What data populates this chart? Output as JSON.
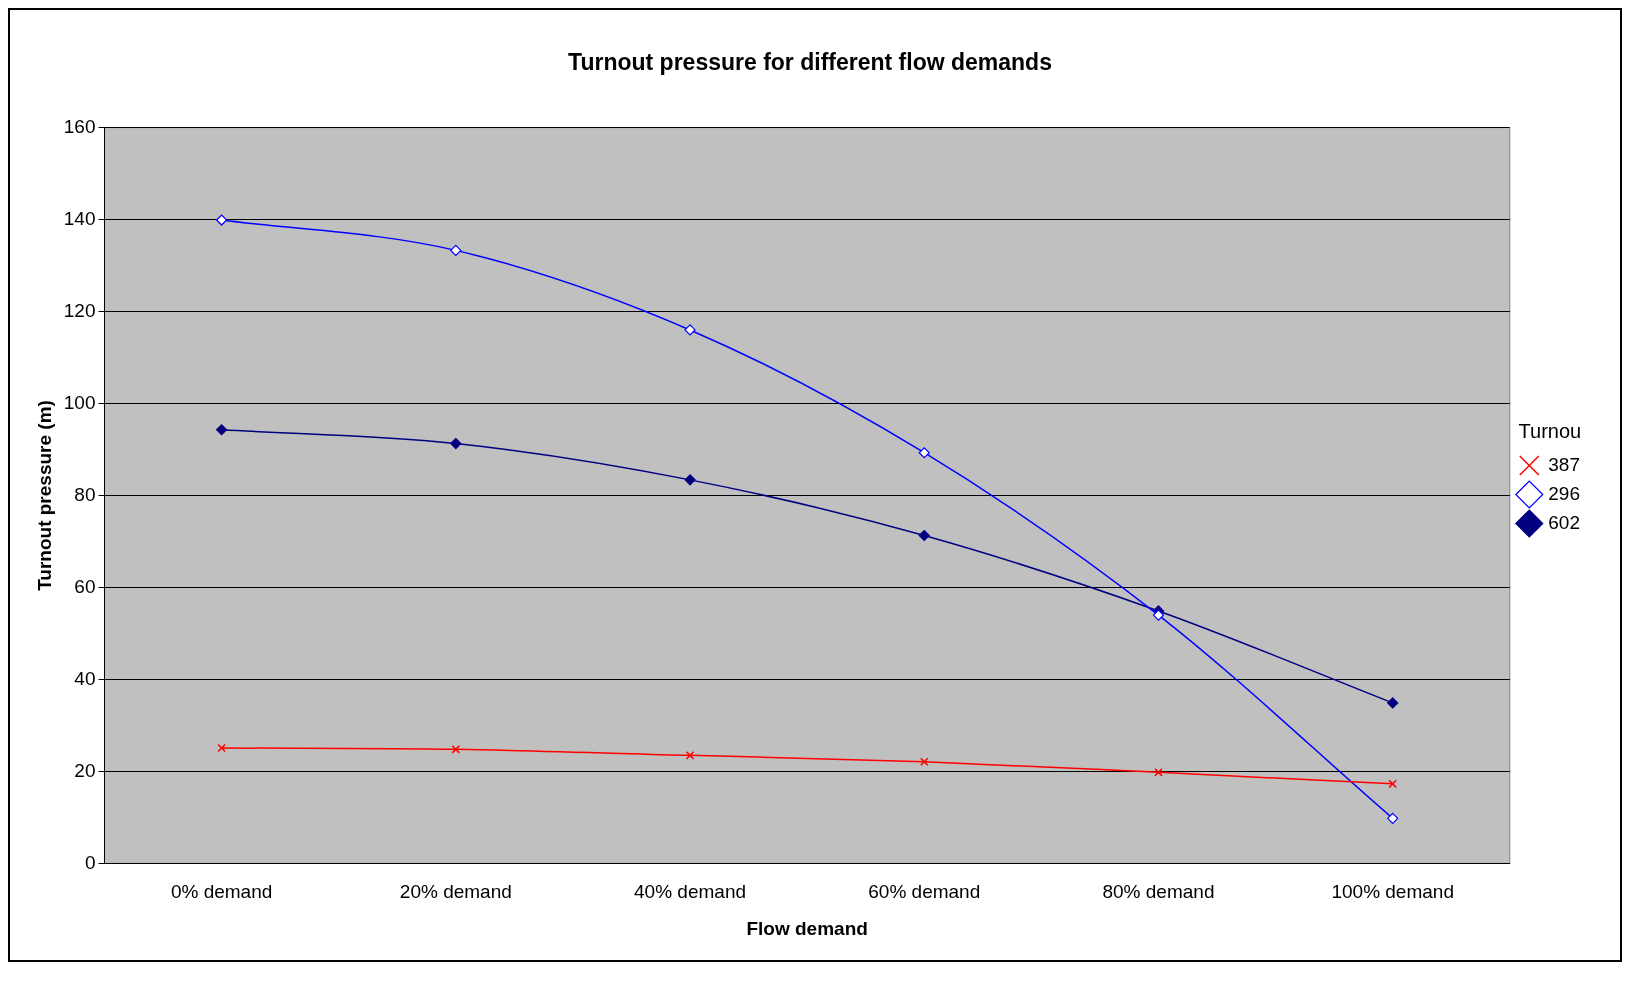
{
  "chart_data": {
    "type": "line",
    "title": "Turnout pressure for different flow demands",
    "xlabel": "Flow demand",
    "ylabel": "Turnout pressure (m)",
    "legend_title": "Turnou",
    "categories": [
      "0% demand",
      "20% demand",
      "40% demand",
      "60% demand",
      "80% demand",
      "100% demand"
    ],
    "series": [
      {
        "name": "387",
        "color": "#ff0000",
        "marker": "cross",
        "values": [
          25.1,
          24.8,
          23.5,
          22.1,
          19.8,
          17.3
        ]
      },
      {
        "name": "296",
        "color": "#0000ff",
        "marker": "diamond",
        "values": [
          139.9,
          133.3,
          116,
          89.3,
          54,
          9.8
        ]
      },
      {
        "name": "602",
        "color": "#000080",
        "marker": "diamond",
        "values": [
          94.3,
          91.3,
          83.4,
          71.3,
          54.9,
          34.9
        ]
      }
    ],
    "ylim": [
      0,
      160
    ],
    "yticks": [
      0,
      20,
      40,
      60,
      80,
      100,
      120,
      140,
      160
    ],
    "grid": "y",
    "legend": "right",
    "line_style": "solid"
  }
}
